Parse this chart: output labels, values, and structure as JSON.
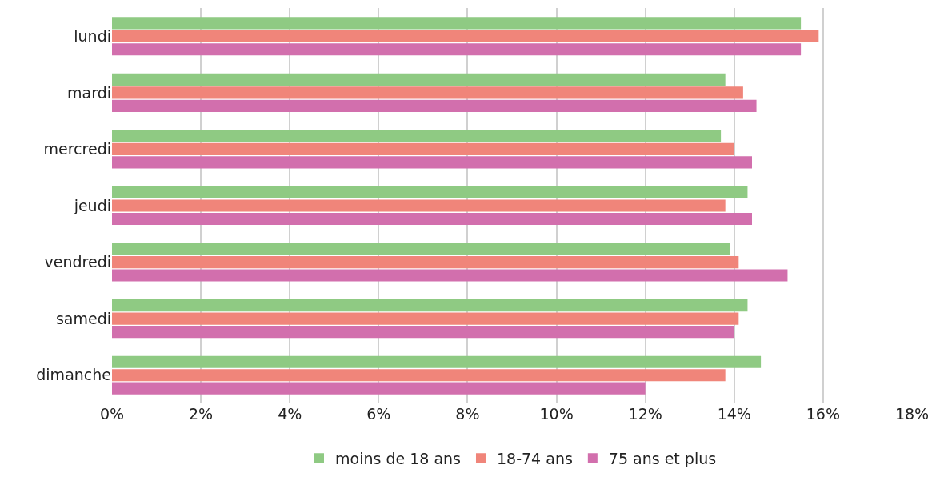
{
  "chart_data": {
    "type": "bar",
    "orientation": "horizontal",
    "categories": [
      "lundi",
      "mardi",
      "mercredi",
      "jeudi",
      "vendredi",
      "samedi",
      "dimanche"
    ],
    "series": [
      {
        "name": "moins de 18 ans",
        "color": "#8fca83",
        "values": [
          15.5,
          13.8,
          13.7,
          14.3,
          13.9,
          14.3,
          14.6
        ]
      },
      {
        "name": "18-74 ans",
        "color": "#f0857a",
        "values": [
          15.9,
          14.2,
          14.0,
          13.8,
          14.1,
          14.1,
          13.8
        ]
      },
      {
        "name": "75 ans et plus",
        "color": "#d26fad",
        "values": [
          15.5,
          14.5,
          14.4,
          14.4,
          15.2,
          14.0,
          12.0
        ]
      }
    ],
    "xlim": [
      0,
      18
    ],
    "xticks": [
      {
        "value": 0,
        "label": "0%"
      },
      {
        "value": 2,
        "label": "2%"
      },
      {
        "value": 4,
        "label": "4%"
      },
      {
        "value": 6,
        "label": "6%"
      },
      {
        "value": 8,
        "label": "8%"
      },
      {
        "value": 10,
        "label": "10%"
      },
      {
        "value": 12,
        "label": "12%"
      },
      {
        "value": 14,
        "label": "14%"
      },
      {
        "value": 16,
        "label": "16%"
      },
      {
        "value": 18,
        "label": "18%"
      }
    ],
    "grid": "x",
    "legend": "bottom"
  }
}
